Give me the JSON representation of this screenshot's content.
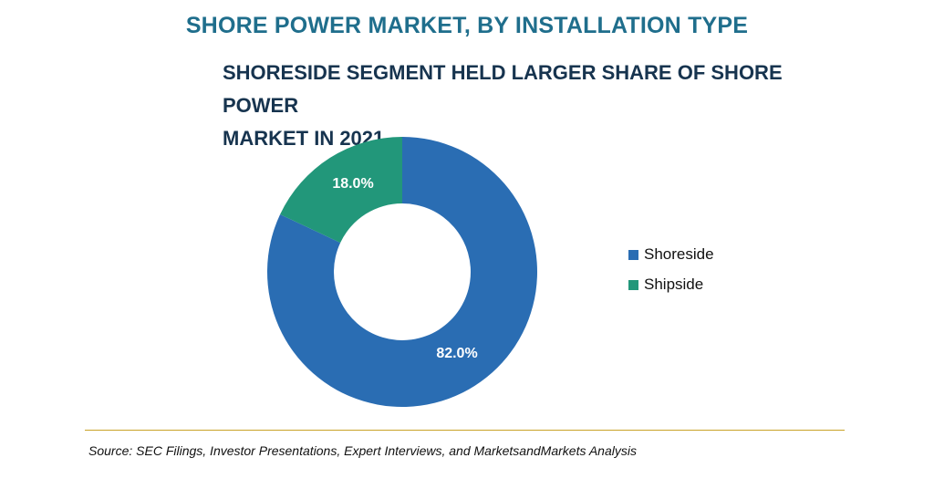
{
  "title": "SHORE POWER MARKET, BY INSTALLATION TYPE",
  "subtitle_line1": "SHORESIDE SEGMENT HELD LARGER SHARE OF SHORE POWER",
  "subtitle_line2": "MARKET IN 2021",
  "source": "Source: SEC Filings, Investor Presentations, Expert Interviews, and MarketsandMarkets Analysis",
  "colors": {
    "shoreside": "#2a6db3",
    "shipside": "#22977a",
    "divider": "#c9a227"
  },
  "chart_data": {
    "type": "pie",
    "variant": "donut",
    "categories": [
      "Shoreside",
      "Shipside"
    ],
    "values": [
      82.0,
      18.0
    ],
    "data_labels": [
      "82.0%",
      "18.0%"
    ],
    "colors": [
      "#2a6db3",
      "#22977a"
    ],
    "legend_placement": "right",
    "legend": [
      "Shoreside",
      "Shipside"
    ]
  }
}
